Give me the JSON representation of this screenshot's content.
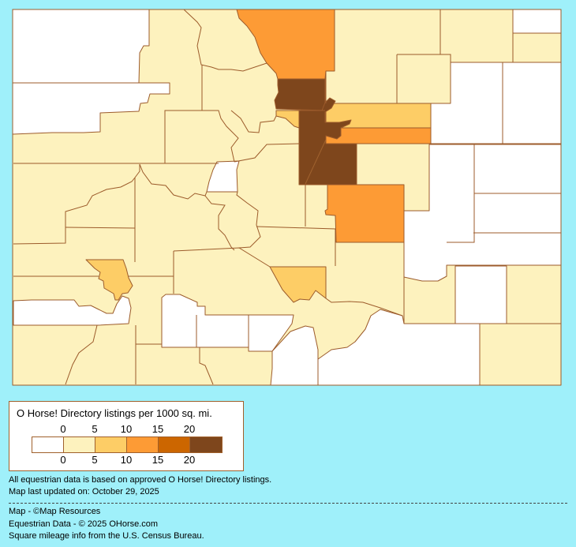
{
  "legend": {
    "title": "O Horse! Directory listings per 1000 sq. mi.",
    "tick_labels": [
      "0",
      "5",
      "10",
      "15",
      "20"
    ],
    "colors": [
      "#ffffff",
      "#fdf2be",
      "#fdcd66",
      "#fd9b35",
      "#cc6600",
      "#7e461c"
    ]
  },
  "map": {
    "background": "#9ff0fa",
    "border_color": "#9c5b2b"
  },
  "notes": {
    "data_basis": "All equestrian data is based on approved O Horse! Directory listings.",
    "updated": "Map last updated on: October 29, 2025",
    "map_credit": "Map - ©Map Resources",
    "data_credit": "Equestrian Data - © 2025 OHorse.com",
    "census_credit": "Square mileage info from the U.S. Census Bureau."
  }
}
